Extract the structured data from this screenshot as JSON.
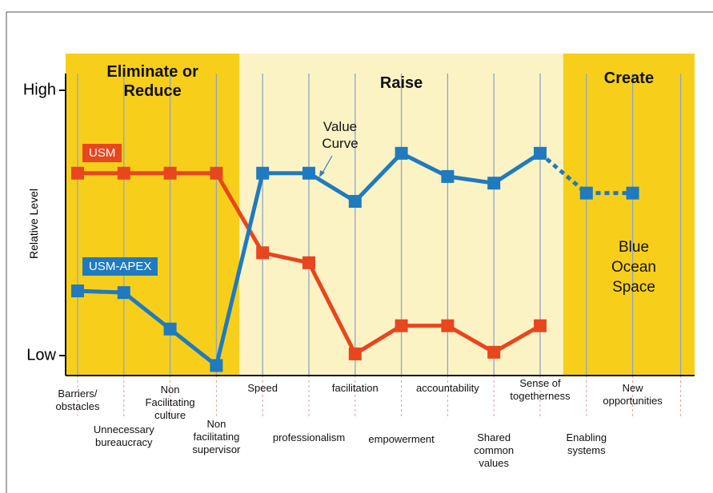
{
  "chart_data": {
    "type": "line",
    "y_label": "Relative Level",
    "sections": [
      {
        "label": "Eliminate or\nReduce",
        "from": 0,
        "to": 3,
        "color": "#f7cf1a"
      },
      {
        "label": "Raise",
        "from": 4,
        "to": 10,
        "color": "#fcf3c5"
      },
      {
        "label": "Create",
        "from": 11,
        "to": 12,
        "color": "#f7cf1a"
      }
    ],
    "categories": [
      "Barriers/\nobstacles",
      "Unnecessary\nbureaucracy",
      "Non\nFacilitating\nculture",
      "Non\nfacilitating\nsupervisor",
      "Speed",
      "professionalism",
      "facilitation",
      "empowerment",
      "accountability",
      "Shared\ncommon\nvalues",
      "Sense of\ntogetherness",
      "Enabling\nsystems",
      "New\nopportunities"
    ],
    "series": [
      {
        "name": "USM",
        "color": "#e8461e",
        "values": [
          6.5,
          6.5,
          6.5,
          6.5,
          4.1,
          3.8,
          1.05,
          1.9,
          1.9,
          1.1,
          1.9,
          null,
          null
        ]
      },
      {
        "name": "USM-APEX",
        "color": "#1f7ac0",
        "values": [
          2.95,
          2.9,
          1.8,
          0.7,
          6.5,
          6.5,
          5.65,
          7.1,
          6.4,
          6.2,
          7.1,
          5.9,
          5.9
        ],
        "dashed_from": 10
      }
    ],
    "ylim": [
      0,
      10
    ],
    "yticks": [
      {
        "value": 1,
        "label": "Low"
      },
      {
        "value": 9,
        "label": "High"
      }
    ],
    "annotations": [
      "Value\nCurve",
      "Blue Ocean\nSpace"
    ]
  }
}
